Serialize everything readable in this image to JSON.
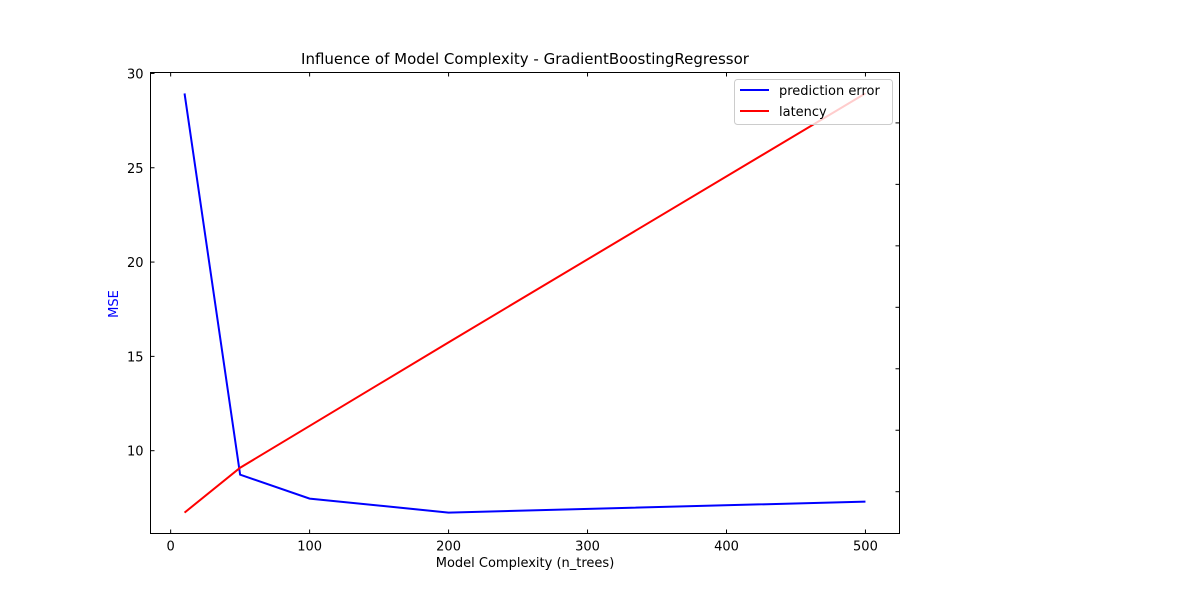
{
  "chart_data": {
    "type": "line",
    "title": "Influence of Model Complexity - GradientBoostingRegressor",
    "xlabel": "Model Complexity (n_trees)",
    "ylabel": "MSE",
    "ylabel_color": "#0000ff",
    "xlim": [
      -14.5,
      524.5
    ],
    "ylim": [
      5.61,
      30.05
    ],
    "xticks": [
      0,
      100,
      200,
      300,
      400,
      500
    ],
    "yticks": [
      10,
      15,
      20,
      25,
      30
    ],
    "right_axis": {
      "ylim": [
        0.32,
        7.82
      ],
      "yticks": [
        1,
        2,
        3,
        4,
        5,
        6,
        7
      ],
      "tick_labels_shown": false
    },
    "grid": false,
    "legend_placement": "top-right",
    "x": [
      10,
      50,
      100,
      200,
      500
    ],
    "series": [
      {
        "name": "prediction error",
        "color": "#0000ff",
        "axis": "left",
        "values": [
          28.94,
          8.73,
          7.46,
          6.72,
          7.3
        ]
      },
      {
        "name": "latency",
        "color": "#ff0000",
        "axis": "right",
        "values": [
          0.66,
          1.39,
          2.07,
          3.43,
          7.48
        ]
      }
    ]
  }
}
